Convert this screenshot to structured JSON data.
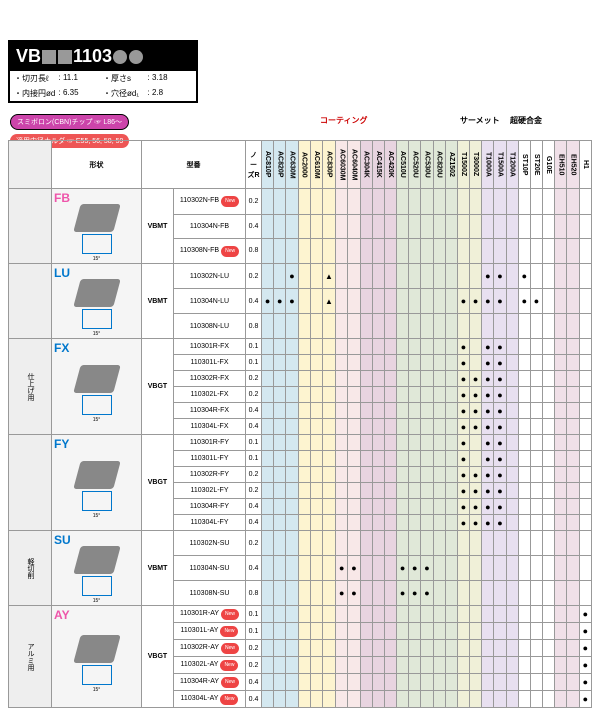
{
  "title_prefix": "VB",
  "title_mid": "1103",
  "specs": {
    "edge_lbl": "・切刃長ℓ",
    "edge_val": ": 11.1",
    "thick_lbl": "・厚さs",
    "thick_val": ": 3.18",
    "ic_lbl": "・内接円ød",
    "ic_val": ": 6.35",
    "hole_lbl": "・穴径ød₁",
    "hole_val": ": 2.8"
  },
  "badge1": "スミボロン(CBN)チップ ☞ L86〜",
  "badge2": "適用内径ホルダ ☞ E55, 56, 58, 59",
  "cat_coating": "コーティング",
  "cat_cermet": "サーメット",
  "cat_carbide": "超硬合金",
  "hdr_shape": "形状",
  "hdr_type": "型番",
  "hdr_nose": "ノーズR",
  "grades": [
    "AC810P",
    "AC820P",
    "AC630M",
    "AC2000",
    "AC610M",
    "AC830P",
    "AC6030M",
    "AC6040M",
    "AC304K",
    "AC415K",
    "AC420K",
    "AC510U",
    "AC520U",
    "AC530U",
    "AC820U",
    "AZ1502",
    "T1500Z",
    "T3000Z",
    "T1000A",
    "T1500A",
    "T1200A",
    "ST10P",
    "ST20E",
    "G10E",
    "EH510",
    "EH520",
    "H1"
  ],
  "grade_bg": [
    "cg1",
    "cg1",
    "cg1",
    "cg2",
    "cg2",
    "cg2",
    "cg3",
    "cg3",
    "cg4",
    "cg4",
    "cg4",
    "cg5",
    "cg5",
    "cg5",
    "cg5",
    "cg5",
    "cg6",
    "cg6",
    "cg7",
    "cg7",
    "cg7",
    "",
    "",
    "",
    "cg8",
    "cg8",
    ""
  ],
  "side_labels": [
    "",
    "",
    "仕上げ用",
    "",
    "軽切削",
    "アルミ用"
  ],
  "rows": [
    {
      "shape": "FB",
      "cls": "fb",
      "type": "VBMT",
      "parts": [
        "110302N-FB",
        "110304N-FB",
        "110308N-FB"
      ],
      "new": [
        1,
        0,
        1
      ],
      "nose": [
        "0.2",
        "0.4",
        "0.8"
      ],
      "m": [
        [],
        [],
        []
      ]
    },
    {
      "shape": "LU",
      "cls": "lu",
      "type": "VBMT",
      "parts": [
        "110302N-LU",
        "110304N-LU",
        "110308N-LU"
      ],
      "new": [
        0,
        0,
        0
      ],
      "nose": [
        "0.2",
        "0.4",
        "0.8"
      ],
      "m": [
        [
          "",
          "",
          "1",
          "",
          "",
          "2",
          "",
          "",
          "",
          "",
          "",
          "",
          "",
          "",
          "",
          "",
          "",
          "",
          "1",
          "1",
          "",
          "1",
          "",
          "",
          "",
          "",
          ""
        ],
        [
          "1",
          "1",
          "1",
          "",
          "",
          "2",
          "",
          "",
          "",
          "",
          "",
          "",
          "",
          "",
          "",
          "",
          "1",
          "1",
          "1",
          "1",
          "",
          "1",
          "1",
          "",
          "",
          "",
          ""
        ],
        [
          "",
          "",
          "",
          "",
          "",
          "",
          "",
          "",
          "",
          "",
          "",
          "",
          "",
          "",
          "",
          "",
          "",
          "",
          "",
          "",
          "",
          "",
          "",
          "",
          "",
          "",
          ""
        ]
      ]
    },
    {
      "shape": "FX",
      "cls": "fx",
      "type": "VBGT",
      "parts": [
        "110301R-FX",
        "110301L-FX",
        "110302R-FX",
        "110302L-FX",
        "110304R-FX",
        "110304L-FX"
      ],
      "new": [
        0,
        0,
        0,
        0,
        0,
        0
      ],
      "nose": [
        "0.1",
        "0.1",
        "0.2",
        "0.2",
        "0.4",
        "0.4"
      ],
      "m": [
        [
          "",
          "",
          "",
          "",
          "",
          "",
          "",
          "",
          "",
          "",
          "",
          "",
          "",
          "",
          "",
          "",
          "1",
          "",
          "1",
          "1",
          "",
          "",
          "",
          "",
          "",
          "",
          ""
        ],
        [
          "",
          "",
          "",
          "",
          "",
          "",
          "",
          "",
          "",
          "",
          "",
          "",
          "",
          "",
          "",
          "",
          "1",
          "",
          "1",
          "1",
          "",
          "",
          "",
          "",
          "",
          "",
          ""
        ],
        [
          "",
          "",
          "",
          "",
          "",
          "",
          "",
          "",
          "",
          "",
          "",
          "",
          "",
          "",
          "",
          "",
          "1",
          "1",
          "1",
          "1",
          "",
          "",
          "",
          "",
          "",
          "",
          ""
        ],
        [
          "",
          "",
          "",
          "",
          "",
          "",
          "",
          "",
          "",
          "",
          "",
          "",
          "",
          "",
          "",
          "",
          "1",
          "1",
          "1",
          "1",
          "",
          "",
          "",
          "",
          "",
          "",
          ""
        ],
        [
          "",
          "",
          "",
          "",
          "",
          "",
          "",
          "",
          "",
          "",
          "",
          "",
          "",
          "",
          "",
          "",
          "1",
          "1",
          "1",
          "1",
          "",
          "",
          "",
          "",
          "",
          "",
          ""
        ],
        [
          "",
          "",
          "",
          "",
          "",
          "",
          "",
          "",
          "",
          "",
          "",
          "",
          "",
          "",
          "",
          "",
          "1",
          "1",
          "1",
          "1",
          "",
          "",
          "",
          "",
          "",
          "",
          ""
        ]
      ]
    },
    {
      "shape": "FY",
      "cls": "fy",
      "type": "VBGT",
      "parts": [
        "110301R-FY",
        "110301L-FY",
        "110302R-FY",
        "110302L-FY",
        "110304R-FY",
        "110304L-FY"
      ],
      "new": [
        0,
        0,
        0,
        0,
        0,
        0
      ],
      "nose": [
        "0.1",
        "0.1",
        "0.2",
        "0.2",
        "0.4",
        "0.4"
      ],
      "m": [
        [
          "",
          "",
          "",
          "",
          "",
          "",
          "",
          "",
          "",
          "",
          "",
          "",
          "",
          "",
          "",
          "",
          "1",
          "",
          "1",
          "1",
          "",
          "",
          "",
          "",
          "",
          "",
          ""
        ],
        [
          "",
          "",
          "",
          "",
          "",
          "",
          "",
          "",
          "",
          "",
          "",
          "",
          "",
          "",
          "",
          "",
          "1",
          "",
          "1",
          "1",
          "",
          "",
          "",
          "",
          "",
          "",
          ""
        ],
        [
          "",
          "",
          "",
          "",
          "",
          "",
          "",
          "",
          "",
          "",
          "",
          "",
          "",
          "",
          "",
          "",
          "1",
          "1",
          "1",
          "1",
          "",
          "",
          "",
          "",
          "",
          "",
          ""
        ],
        [
          "",
          "",
          "",
          "",
          "",
          "",
          "",
          "",
          "",
          "",
          "",
          "",
          "",
          "",
          "",
          "",
          "1",
          "1",
          "1",
          "1",
          "",
          "",
          "",
          "",
          "",
          "",
          ""
        ],
        [
          "",
          "",
          "",
          "",
          "",
          "",
          "",
          "",
          "",
          "",
          "",
          "",
          "",
          "",
          "",
          "",
          "1",
          "1",
          "1",
          "1",
          "",
          "",
          "",
          "",
          "",
          "",
          ""
        ],
        [
          "",
          "",
          "",
          "",
          "",
          "",
          "",
          "",
          "",
          "",
          "",
          "",
          "",
          "",
          "",
          "",
          "1",
          "1",
          "1",
          "1",
          "",
          "",
          "",
          "",
          "",
          "",
          ""
        ]
      ]
    },
    {
      "shape": "SU",
      "cls": "su",
      "type": "VBMT",
      "parts": [
        "110302N-SU",
        "110304N-SU",
        "110308N-SU"
      ],
      "new": [
        0,
        0,
        0
      ],
      "nose": [
        "0.2",
        "0.4",
        "0.8"
      ],
      "m": [
        [
          "",
          "",
          "",
          "",
          "",
          "",
          "",
          "",
          "",
          "",
          "",
          "",
          "",
          "",
          "",
          "",
          "",
          "",
          "",
          "",
          "",
          "",
          "",
          "",
          "",
          "",
          ""
        ],
        [
          "",
          "",
          "",
          "",
          "",
          "",
          "1",
          "1",
          "",
          "",
          "",
          "1",
          "1",
          "1",
          "",
          "",
          "",
          "",
          "",
          "",
          "",
          "",
          "",
          "",
          "",
          "",
          ""
        ],
        [
          "",
          "",
          "",
          "",
          "",
          "",
          "1",
          "1",
          "",
          "",
          "",
          "1",
          "1",
          "1",
          "",
          "",
          "",
          "",
          "",
          "",
          "",
          "",
          "",
          "",
          "",
          "",
          ""
        ]
      ]
    },
    {
      "shape": "AY",
      "cls": "ay",
      "type": "VBGT",
      "parts": [
        "110301R-AY",
        "110301L-AY",
        "110302R-AY",
        "110302L-AY",
        "110304R-AY",
        "110304L-AY"
      ],
      "new": [
        1,
        1,
        1,
        1,
        1,
        1
      ],
      "nose": [
        "0.1",
        "0.1",
        "0.2",
        "0.2",
        "0.4",
        "0.4"
      ],
      "m": [
        [
          "",
          "",
          "",
          "",
          "",
          "",
          "",
          "",
          "",
          "",
          "",
          "",
          "",
          "",
          "",
          "",
          "",
          "",
          "",
          "",
          "",
          "",
          "",
          "",
          "",
          "",
          "1"
        ],
        [
          "",
          "",
          "",
          "",
          "",
          "",
          "",
          "",
          "",
          "",
          "",
          "",
          "",
          "",
          "",
          "",
          "",
          "",
          "",
          "",
          "",
          "",
          "",
          "",
          "",
          "",
          "1"
        ],
        [
          "",
          "",
          "",
          "",
          "",
          "",
          "",
          "",
          "",
          "",
          "",
          "",
          "",
          "",
          "",
          "",
          "",
          "",
          "",
          "",
          "",
          "",
          "",
          "",
          "",
          "",
          "1"
        ],
        [
          "",
          "",
          "",
          "",
          "",
          "",
          "",
          "",
          "",
          "",
          "",
          "",
          "",
          "",
          "",
          "",
          "",
          "",
          "",
          "",
          "",
          "",
          "",
          "",
          "",
          "",
          "1"
        ],
        [
          "",
          "",
          "",
          "",
          "",
          "",
          "",
          "",
          "",
          "",
          "",
          "",
          "",
          "",
          "",
          "",
          "",
          "",
          "",
          "",
          "",
          "",
          "",
          "",
          "",
          "",
          "1"
        ],
        [
          "",
          "",
          "",
          "",
          "",
          "",
          "",
          "",
          "",
          "",
          "",
          "",
          "",
          "",
          "",
          "",
          "",
          "",
          "",
          "",
          "",
          "",
          "",
          "",
          "",
          "",
          "1"
        ]
      ]
    }
  ]
}
